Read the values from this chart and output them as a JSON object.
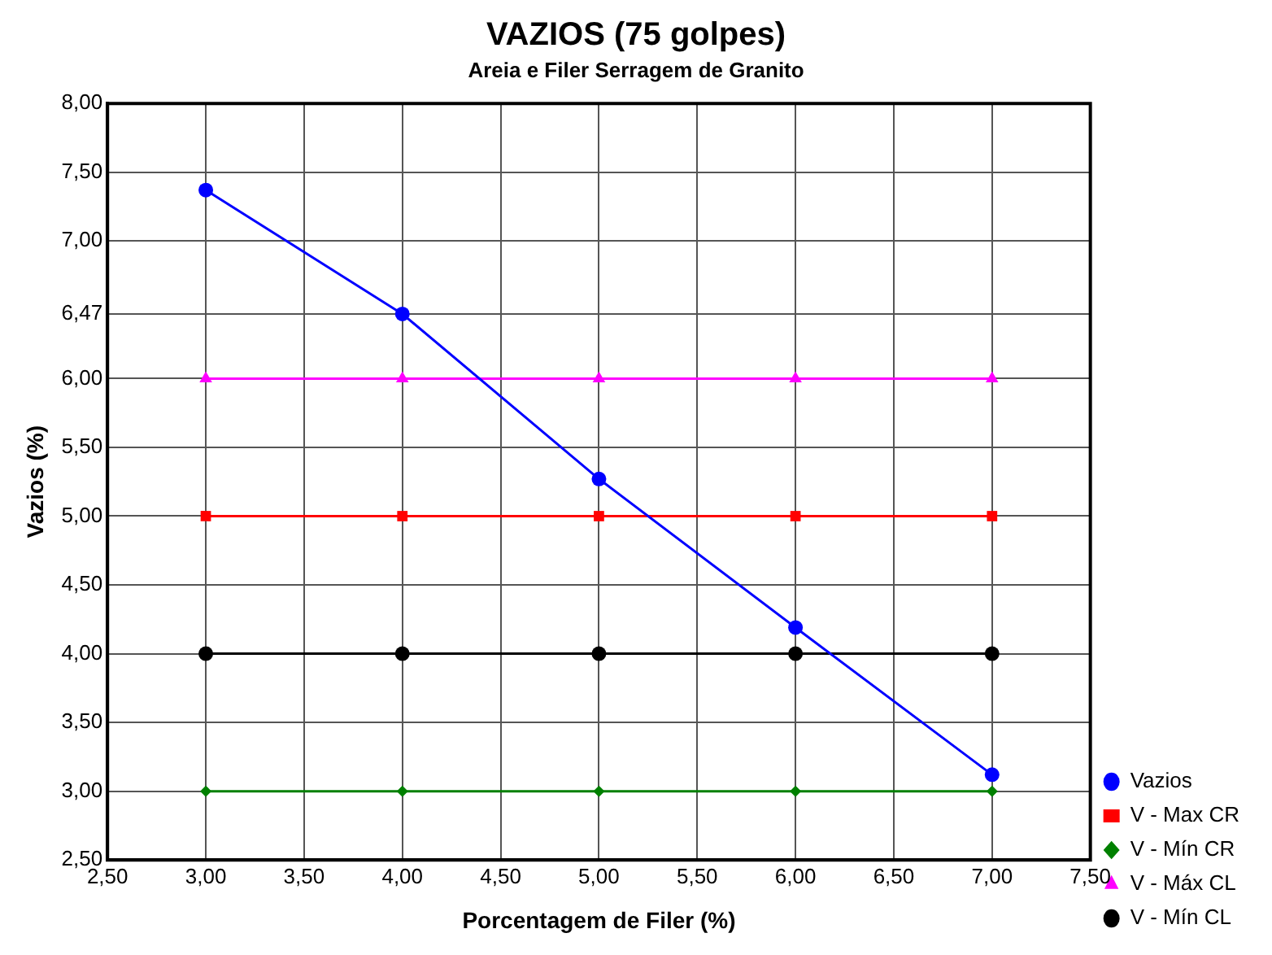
{
  "chart_data": {
    "type": "line",
    "title": "VAZIOS (75 golpes)",
    "subtitle": "Areia e Filer Serragem de Granito",
    "xlabel": "Porcentagem de Filer (%)",
    "ylabel": "Vazios (%)",
    "x": [
      3,
      4,
      5,
      6,
      7
    ],
    "series": [
      {
        "name": "Vazios",
        "color": "#0000ff",
        "marker": "circle",
        "values": [
          7.37,
          6.47,
          5.27,
          4.19,
          3.12
        ]
      },
      {
        "name": "V - Max CR",
        "color": "#ff0000",
        "marker": "square",
        "values": [
          5,
          5,
          5,
          5,
          5
        ]
      },
      {
        "name": "V - Mín CR",
        "color": "#008000",
        "marker": "diamond",
        "values": [
          3,
          3,
          3,
          3,
          3
        ]
      },
      {
        "name": "V - Máx CL",
        "color": "#ff00ff",
        "marker": "triangle",
        "values": [
          6,
          6,
          6,
          6,
          6
        ]
      },
      {
        "name": "V - Mín CL",
        "color": "#000000",
        "marker": "circle",
        "values": [
          4,
          4,
          4,
          4,
          4
        ]
      }
    ],
    "xlim": [
      2.5,
      7.5
    ],
    "ylim": [
      2.5,
      8
    ],
    "xticks": [
      {
        "value": 2.5,
        "label": "2,50"
      },
      {
        "value": 3,
        "label": "3,00"
      },
      {
        "value": 3.5,
        "label": "3,50"
      },
      {
        "value": 4,
        "label": "4,00"
      },
      {
        "value": 4.5,
        "label": "4,50"
      },
      {
        "value": 5,
        "label": "5,00"
      },
      {
        "value": 5.5,
        "label": "5,50"
      },
      {
        "value": 6,
        "label": "6,00"
      },
      {
        "value": 6.5,
        "label": "6,50"
      },
      {
        "value": 7,
        "label": "7,00"
      },
      {
        "value": 7.5,
        "label": "7,50"
      }
    ],
    "yticks": [
      {
        "value": 2.5,
        "label": "2,50"
      },
      {
        "value": 3,
        "label": "3,00"
      },
      {
        "value": 3.5,
        "label": "3,50"
      },
      {
        "value": 4,
        "label": "4,00"
      },
      {
        "value": 4.5,
        "label": "4,50"
      },
      {
        "value": 5,
        "label": "5,00"
      },
      {
        "value": 5.5,
        "label": "5,50"
      },
      {
        "value": 6,
        "label": "6,00"
      },
      {
        "value": 6.47,
        "label": "6,47"
      },
      {
        "value": 7,
        "label": "7,00"
      },
      {
        "value": 7.5,
        "label": "7,50"
      },
      {
        "value": 8,
        "label": "8,00"
      }
    ],
    "grid": true,
    "legend": "bottom right"
  }
}
